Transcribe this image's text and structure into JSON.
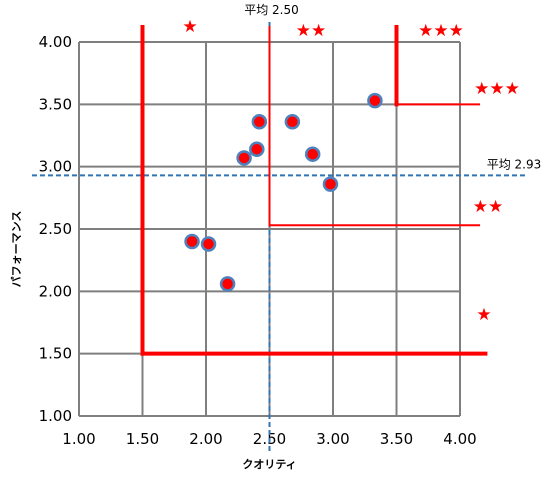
{
  "chart_data": {
    "type": "scatter",
    "xlabel": "クオリティ",
    "ylabel": "パフォーマンス",
    "xlim": [
      1.0,
      4.0
    ],
    "ylim": [
      1.0,
      4.0
    ],
    "x_ticks": [
      "1.00",
      "1.50",
      "2.00",
      "2.50",
      "3.00",
      "3.50",
      "4.00"
    ],
    "y_ticks": [
      "1.00",
      "1.50",
      "2.00",
      "2.50",
      "3.00",
      "3.50",
      "4.00"
    ],
    "grid": true,
    "points": [
      {
        "x": 1.89,
        "y": 2.4
      },
      {
        "x": 2.02,
        "y": 2.38
      },
      {
        "x": 2.17,
        "y": 2.06
      },
      {
        "x": 2.3,
        "y": 3.07
      },
      {
        "x": 2.4,
        "y": 3.14
      },
      {
        "x": 2.42,
        "y": 3.36
      },
      {
        "x": 2.68,
        "y": 3.36
      },
      {
        "x": 2.84,
        "y": 3.1
      },
      {
        "x": 2.98,
        "y": 2.86
      },
      {
        "x": 3.33,
        "y": 3.53
      }
    ],
    "average_lines": [
      {
        "axis": "x",
        "value": 2.5,
        "label": "平均 2.50"
      },
      {
        "axis": "y",
        "value": 2.93,
        "label": "平均 2.93"
      }
    ],
    "star_labels": [
      "★",
      "★★",
      "★★★",
      "★★★",
      "★★",
      "★"
    ],
    "zone_lines": [
      {
        "x1": 1.5,
        "y1": 4.12,
        "x2": 1.5,
        "y2": 1.5,
        "thick": true
      },
      {
        "x1": 1.5,
        "y1": 1.5,
        "x2": 4.2,
        "y2": 1.5,
        "thick": true
      },
      {
        "x1": 2.5,
        "y1": 4.12,
        "x2": 2.5,
        "y2": 2.53,
        "thick": false
      },
      {
        "x1": 2.5,
        "y1": 2.53,
        "x2": 4.15,
        "y2": 2.53,
        "thick": false
      },
      {
        "x1": 3.5,
        "y1": 4.12,
        "x2": 3.5,
        "y2": 3.5,
        "thick": true
      },
      {
        "x1": 3.5,
        "y1": 3.5,
        "x2": 4.15,
        "y2": 3.5,
        "thick": false
      }
    ],
    "colors": {
      "point_fill": "#ff0000",
      "point_edge": "#4f81bd",
      "zone_line": "#ff0000",
      "average_line": "#2e75b6",
      "grid": "#7f7f7f",
      "star": "#ff0000"
    }
  }
}
